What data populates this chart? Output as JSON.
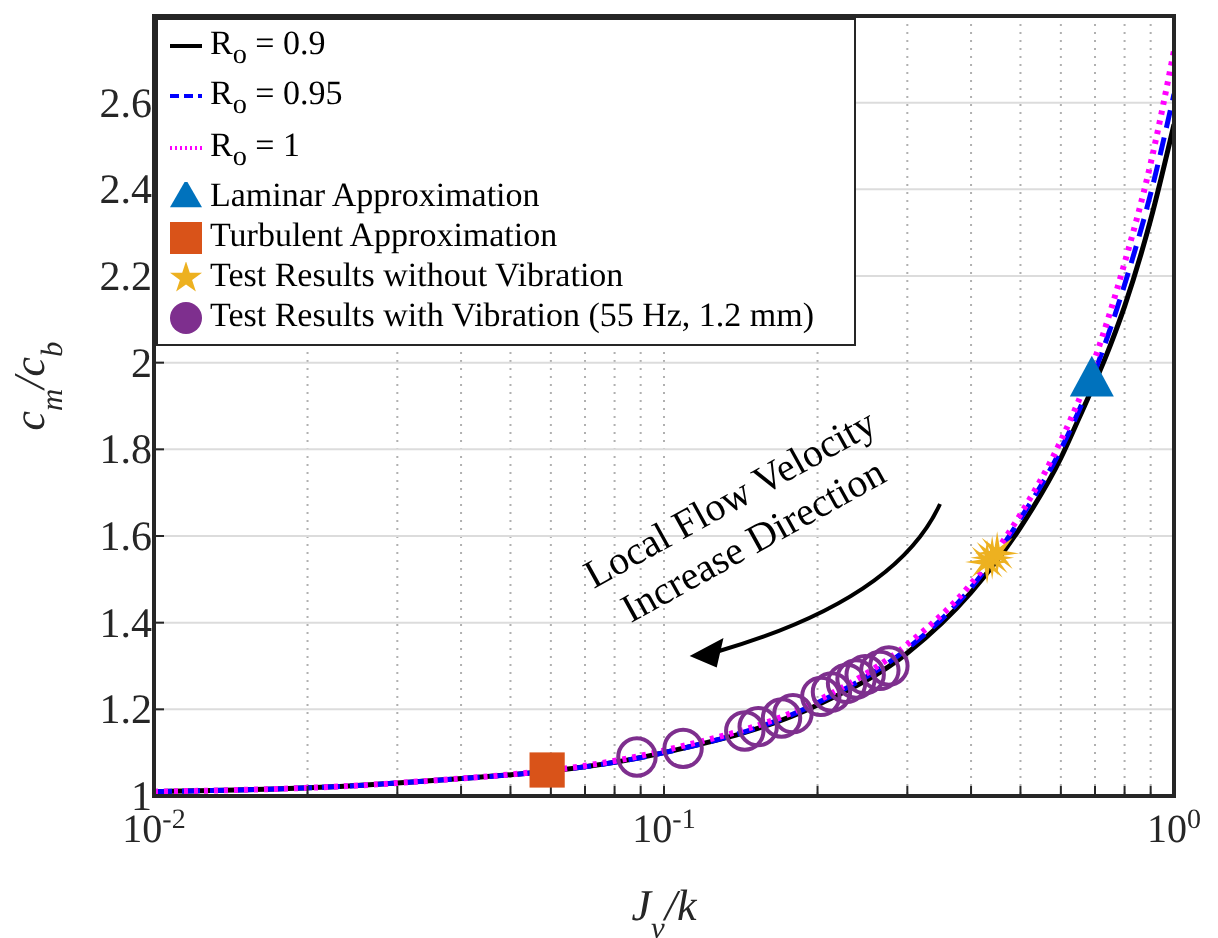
{
  "chart_data": {
    "type": "line",
    "xlabel": "J$_{v}$/k",
    "ylabel": "c$_{m}$/c$_{b}$",
    "log": "x",
    "grid": true,
    "legend": "top left",
    "xlim": [
      0.01,
      1
    ],
    "xticks": [
      {
        "value": 0.01,
        "label": "10$^{-2}$"
      },
      {
        "value": 0.02,
        "label": null
      },
      {
        "value": 0.03,
        "label": null
      },
      {
        "value": 0.04,
        "label": null
      },
      {
        "value": 0.05,
        "label": null
      },
      {
        "value": 0.06,
        "label": null
      },
      {
        "value": 0.07,
        "label": null
      },
      {
        "value": 0.08,
        "label": null
      },
      {
        "value": 0.09,
        "label": null
      },
      {
        "value": 0.1,
        "label": "10$^{-1}$"
      },
      {
        "value": 0.2,
        "label": null
      },
      {
        "value": 0.3,
        "label": null
      },
      {
        "value": 0.4,
        "label": null
      },
      {
        "value": 0.5,
        "label": null
      },
      {
        "value": 0.6,
        "label": null
      },
      {
        "value": 0.7,
        "label": null
      },
      {
        "value": 0.8,
        "label": null
      },
      {
        "value": 0.9,
        "label": null
      },
      {
        "value": 1,
        "label": "10$^{0}$"
      }
    ],
    "ylim": [
      1,
      2.8
    ],
    "yticks": [
      1,
      1.2,
      1.4,
      1.6,
      1.8,
      2,
      2.2,
      2.4,
      2.6
    ],
    "annotations": [
      "Local Flow Velocity\nIncrease Direction"
    ],
    "series": [
      {
        "name": "R$_{o}$ = 0.9",
        "type": "line",
        "color": "#000000",
        "line_style": "solid",
        "x": [
          0.01,
          0.03,
          0.1,
          0.2,
          0.3,
          0.4,
          0.5,
          0.6,
          0.65,
          0.75,
          0.8,
          0.9,
          1
        ],
        "values": [
          1.01,
          1.03,
          1.1,
          1.21,
          1.33,
          1.47,
          1.62,
          1.78,
          1.87,
          2.04,
          2.13,
          2.33,
          2.55
        ]
      },
      {
        "name": "R$_{o}$ = 0.95",
        "type": "line",
        "color": "#0000ff",
        "line_style": "dashed",
        "x": [
          0.01,
          0.03,
          0.1,
          0.2,
          0.3,
          0.4,
          0.5,
          0.6,
          0.7,
          0.8,
          0.9,
          1
        ],
        "values": [
          1.01,
          1.03,
          1.1,
          1.215,
          1.34,
          1.48,
          1.64,
          1.8,
          1.98,
          2.18,
          2.39,
          2.62
        ]
      },
      {
        "name": "R$_{o}$ = 1",
        "type": "line",
        "color": "#ff00ff",
        "line_style": "dotted",
        "x": [
          0.01,
          0.03,
          0.1,
          0.2,
          0.3,
          0.4,
          0.5,
          0.6,
          0.7,
          0.8,
          0.9,
          1
        ],
        "values": [
          1.01,
          1.03,
          1.105,
          1.22,
          1.35,
          1.49,
          1.65,
          1.82,
          2.01,
          2.23,
          2.46,
          2.72
        ]
      },
      {
        "name": "Laminar Approximation",
        "type": "scatter",
        "marker": "triangle",
        "color": "#0072bd",
        "x": [
          0.69
        ],
        "values": [
          1.96
        ]
      },
      {
        "name": "Turbulent Approximation",
        "type": "scatter",
        "marker": "square",
        "color": "#d95319",
        "x": [
          0.059
        ],
        "values": [
          1.06
        ]
      },
      {
        "name": "Test Results without Vibration",
        "type": "scatter",
        "marker": "star",
        "color": "#edb120",
        "x": [
          0.43,
          0.44,
          0.45
        ],
        "values": [
          1.54,
          1.55,
          1.56
        ]
      },
      {
        "name": "Test Results with Vibration (55 Hz, 1.2 mm)",
        "type": "scatter",
        "marker": "circle",
        "color": "#7e2f8e",
        "x": [
          0.0885,
          0.109,
          0.144,
          0.153,
          0.17,
          0.179,
          0.203,
          0.213,
          0.228,
          0.238,
          0.248,
          0.265,
          0.276
        ],
        "values": [
          1.09,
          1.11,
          1.15,
          1.16,
          1.18,
          1.19,
          1.23,
          1.24,
          1.26,
          1.27,
          1.28,
          1.29,
          1.3
        ]
      }
    ]
  }
}
